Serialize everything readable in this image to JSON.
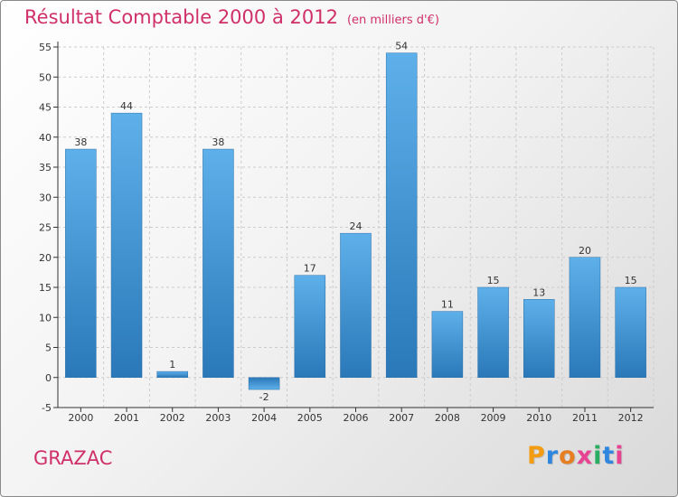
{
  "header": {
    "title": "Résultat Comptable 2000 à 2012",
    "subtitle": "(en milliers d'€)"
  },
  "footer": {
    "commune": "GRAZAC",
    "brand": "Proxiti"
  },
  "colors": {
    "title": "#d0306a",
    "bar_light": "#5eb0ea",
    "bar_dark": "#2a78b8",
    "axis": "#333333",
    "grid": "#cccccc",
    "brand_letters": [
      "#f39c12",
      "#2e86de",
      "#e67e22",
      "#e84393",
      "#27ae60",
      "#2e86de",
      "#e84393"
    ]
  },
  "chart_data": {
    "type": "bar",
    "title": "Résultat Comptable 2000 à 2012",
    "subtitle": "(en milliers d'€)",
    "xlabel": "",
    "ylabel": "",
    "categories": [
      "2000",
      "2001",
      "2002",
      "2003",
      "2004",
      "2005",
      "2006",
      "2007",
      "2008",
      "2009",
      "2010",
      "2011",
      "2012"
    ],
    "values": [
      38,
      44,
      1,
      38,
      -2,
      17,
      24,
      54,
      11,
      15,
      13,
      20,
      15
    ],
    "ylim": [
      -5,
      55
    ],
    "yticks": [
      -5,
      0,
      5,
      10,
      15,
      20,
      25,
      30,
      35,
      40,
      45,
      50,
      55
    ],
    "grid": true
  }
}
